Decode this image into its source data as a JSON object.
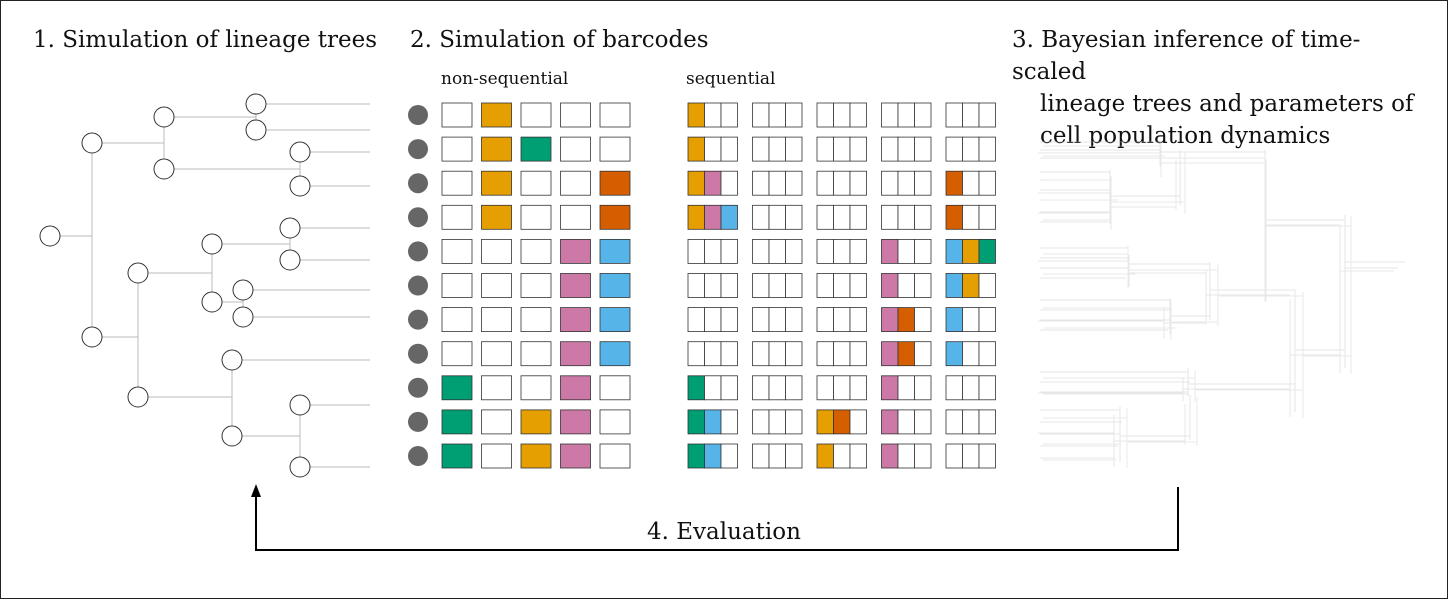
{
  "titles": {
    "step1": "1. Simulation of lineage trees",
    "step2": "2. Simulation of barcodes",
    "step3_lines": [
      "3. Bayesian inference of time-scaled",
      "lineage trees and parameters of",
      "cell population dynamics"
    ],
    "step4": "4. Evaluation"
  },
  "labels": {
    "non_sequential": "non-sequential",
    "sequential": "sequential"
  },
  "colors": {
    "O": "#E69F00",
    "G": "#009E73",
    "R": "#D55E00",
    "P": "#CC79A7",
    "B": "#56B4E9",
    "cell": "#666666",
    "line": "#bbbbbb"
  },
  "barcodes": {
    "non_sequential": [
      [
        "",
        "O",
        "",
        "",
        ""
      ],
      [
        "",
        "O",
        "G",
        "",
        ""
      ],
      [
        "",
        "O",
        "",
        "",
        "R"
      ],
      [
        "",
        "O",
        "",
        "",
        "R"
      ],
      [
        "",
        "",
        "",
        "P",
        "B"
      ],
      [
        "",
        "",
        "",
        "P",
        "B"
      ],
      [
        "",
        "",
        "",
        "P",
        "B"
      ],
      [
        "",
        "",
        "",
        "P",
        "B"
      ],
      [
        "G",
        "",
        "",
        "P",
        ""
      ],
      [
        "G",
        "",
        "O",
        "P",
        ""
      ],
      [
        "G",
        "",
        "O",
        "P",
        ""
      ]
    ],
    "sequential": [
      [
        [
          "O",
          "",
          ""
        ],
        [
          "",
          "",
          ""
        ],
        [
          "",
          "",
          ""
        ],
        [
          "",
          "",
          ""
        ],
        [
          "",
          "",
          ""
        ]
      ],
      [
        [
          "O",
          "",
          ""
        ],
        [
          "",
          "",
          ""
        ],
        [
          "",
          "",
          ""
        ],
        [
          "",
          "",
          ""
        ],
        [
          "",
          "",
          ""
        ]
      ],
      [
        [
          "O",
          "P",
          ""
        ],
        [
          "",
          "",
          ""
        ],
        [
          "",
          "",
          ""
        ],
        [
          "",
          "",
          ""
        ],
        [
          "R",
          "",
          ""
        ]
      ],
      [
        [
          "O",
          "P",
          "B"
        ],
        [
          "",
          "",
          ""
        ],
        [
          "",
          "",
          ""
        ],
        [
          "",
          "",
          ""
        ],
        [
          "R",
          "",
          ""
        ]
      ],
      [
        [
          "",
          "",
          ""
        ],
        [
          "",
          "",
          ""
        ],
        [
          "",
          "",
          ""
        ],
        [
          "P",
          "",
          ""
        ],
        [
          "B",
          "O",
          "G"
        ]
      ],
      [
        [
          "",
          "",
          ""
        ],
        [
          "",
          "",
          ""
        ],
        [
          "",
          "",
          ""
        ],
        [
          "P",
          "",
          ""
        ],
        [
          "B",
          "O",
          ""
        ]
      ],
      [
        [
          "",
          "",
          ""
        ],
        [
          "",
          "",
          ""
        ],
        [
          "",
          "",
          ""
        ],
        [
          "P",
          "R",
          ""
        ],
        [
          "B",
          "",
          ""
        ]
      ],
      [
        [
          "",
          "",
          ""
        ],
        [
          "",
          "",
          ""
        ],
        [
          "",
          "",
          ""
        ],
        [
          "P",
          "R",
          ""
        ],
        [
          "B",
          "",
          ""
        ]
      ],
      [
        [
          "G",
          "",
          ""
        ],
        [
          "",
          "",
          ""
        ],
        [
          "",
          "",
          ""
        ],
        [
          "P",
          "",
          ""
        ],
        [
          "",
          "",
          ""
        ]
      ],
      [
        [
          "G",
          "B",
          ""
        ],
        [
          "",
          "",
          ""
        ],
        [
          "O",
          "R",
          ""
        ],
        [
          "P",
          "",
          ""
        ],
        [
          "",
          "",
          ""
        ]
      ],
      [
        [
          "G",
          "B",
          ""
        ],
        [
          "",
          "",
          ""
        ],
        [
          "O",
          "",
          ""
        ],
        [
          "P",
          "",
          ""
        ],
        [
          "",
          "",
          ""
        ]
      ]
    ]
  }
}
